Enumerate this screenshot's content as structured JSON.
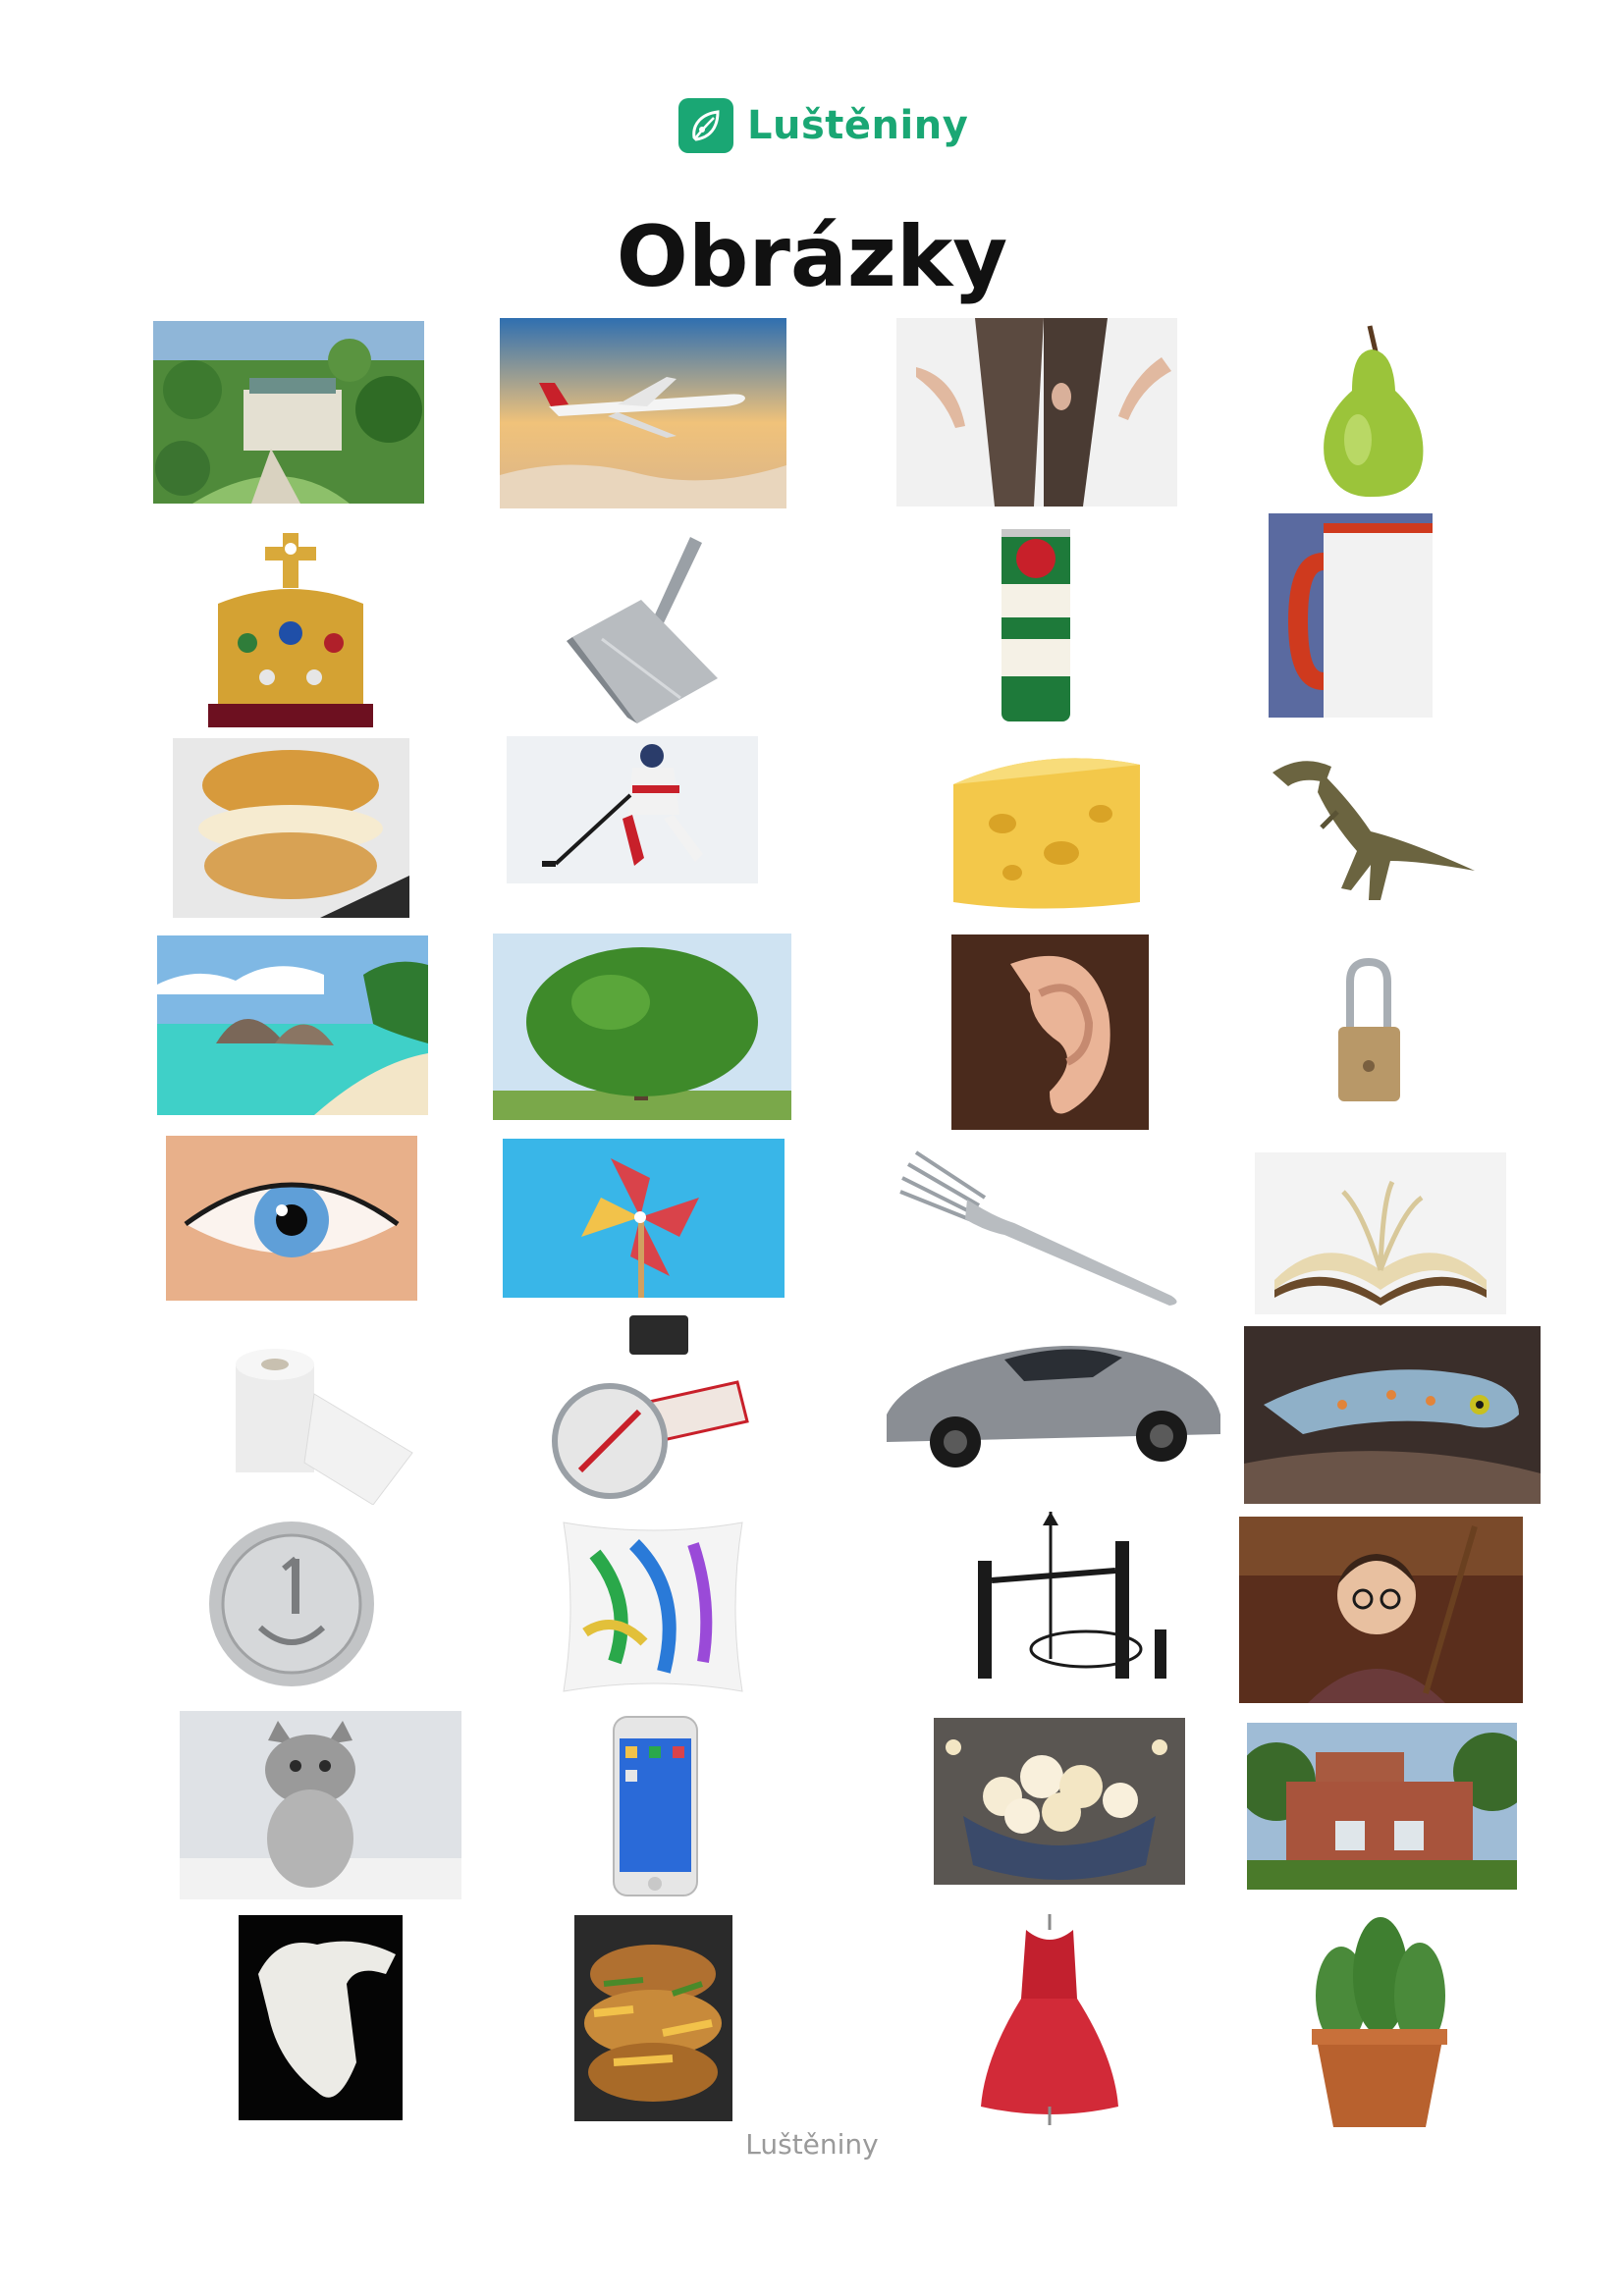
{
  "header": {
    "logo_text": "Luštěniny",
    "logo_icon": "leaf-icon",
    "brand_color": "#1aa774"
  },
  "page": {
    "title": "Obrázky"
  },
  "pictures": [
    "chateau-aerial-photo",
    "airplane-photo",
    "torn-tights-photo",
    "pear-photo",
    "crown-photo",
    "dustpan-photo",
    "beer-can-photo",
    "mug-photo",
    "cream-puff-photo",
    "hockey-player-photo",
    "cheese-photo",
    "dinosaur-photo",
    "beach-photo",
    "tree-photo",
    "ear-photo",
    "padlock-photo",
    "eye-photo",
    "pinwheel-photo",
    "fork-photo",
    "open-book-photo",
    "toilet-paper-photo",
    "compass-photo",
    "sports-car-photo",
    "gecko-photo",
    "coin-photo",
    "pillow-photo",
    "trap-drawing",
    "wizard-boy-photo",
    "kitten-photo",
    "smartphone-photo",
    "popcorn-photo",
    "brick-house-photo",
    "bone-photo",
    "food-photo",
    "red-dress-photo",
    "cactus-photo"
  ],
  "footer": {
    "text": "Luštěniny"
  }
}
